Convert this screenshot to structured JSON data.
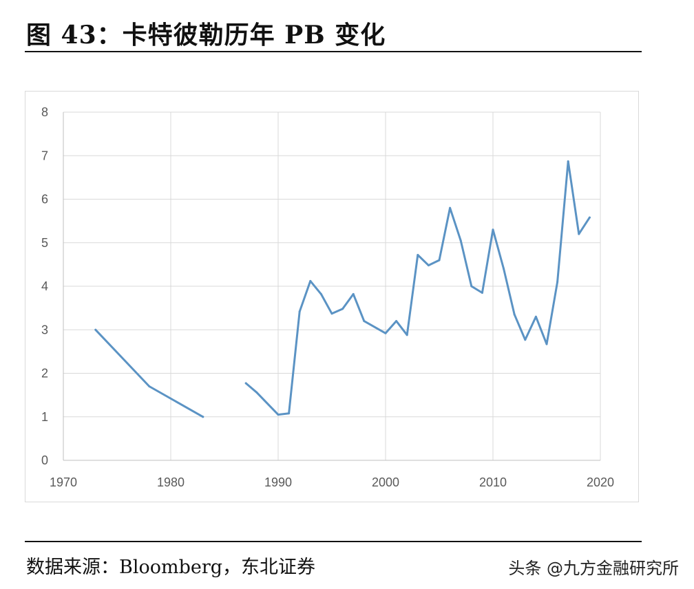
{
  "title": "图 43：卡特彼勒历年 PB 变化",
  "source": "数据来源：Bloomberg，东北证券",
  "watermark": "头条 @九方金融研究所",
  "chart_data": {
    "type": "line",
    "title": "",
    "xlabel": "",
    "ylabel": "",
    "xlim": [
      1970,
      2020
    ],
    "ylim": [
      0,
      8
    ],
    "x_ticks": [
      1970,
      1980,
      1990,
      2000,
      2010,
      2020
    ],
    "y_ticks": [
      0,
      1,
      2,
      3,
      4,
      5,
      6,
      7,
      8
    ],
    "grid": true,
    "legend": "none",
    "line_color": "#5b93c4",
    "series": [
      {
        "segments": [
          [
            [
              1973,
              3.0
            ],
            [
              1978,
              1.7
            ],
            [
              1983,
              1.0
            ]
          ],
          [
            [
              1987,
              1.77
            ],
            [
              1988,
              1.56
            ],
            [
              1990,
              1.05
            ],
            [
              1991,
              1.08
            ],
            [
              1992,
              3.42
            ],
            [
              1993,
              4.12
            ],
            [
              1994,
              3.82
            ],
            [
              1995,
              3.37
            ],
            [
              1996,
              3.48
            ],
            [
              1997,
              3.82
            ],
            [
              1998,
              3.2
            ],
            [
              2000,
              2.92
            ],
            [
              2001,
              3.2
            ],
            [
              2002,
              2.88
            ],
            [
              2003,
              4.72
            ],
            [
              2004,
              4.48
            ],
            [
              2005,
              4.6
            ],
            [
              2006,
              5.8
            ],
            [
              2007,
              5.05
            ],
            [
              2008,
              4.0
            ],
            [
              2009,
              3.85
            ],
            [
              2010,
              5.3
            ],
            [
              2011,
              4.4
            ],
            [
              2012,
              3.35
            ],
            [
              2013,
              2.77
            ],
            [
              2014,
              3.3
            ],
            [
              2015,
              2.67
            ],
            [
              2016,
              4.1
            ],
            [
              2017,
              6.87
            ],
            [
              2018,
              5.2
            ],
            [
              2019,
              5.58
            ]
          ]
        ]
      }
    ]
  }
}
